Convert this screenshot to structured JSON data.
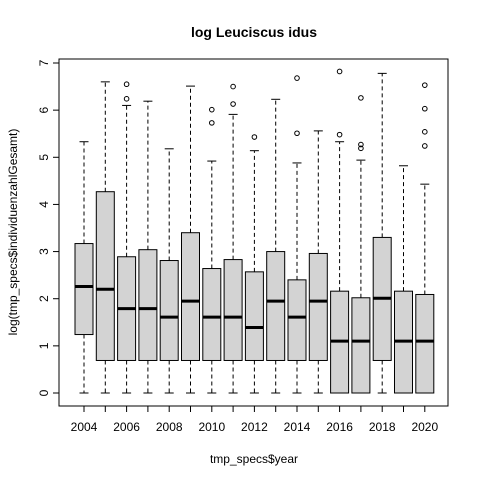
{
  "chart_data": {
    "type": "boxplot",
    "title": "log Leuciscus idus",
    "xlabel": "tmp_specs$year",
    "ylabel": "log(tmp_specs$individuenzahlGesamt)",
    "ylim": [
      0,
      7
    ],
    "yticks": [
      "0",
      "1",
      "2",
      "3",
      "4",
      "5",
      "6",
      "7"
    ],
    "xtick_labels": [
      "2004",
      "2006",
      "2008",
      "2010",
      "2012",
      "2014",
      "2016",
      "2018",
      "2020"
    ],
    "categories": [
      "2004",
      "2005",
      "2006",
      "2007",
      "2008",
      "2009",
      "2010",
      "2011",
      "2012",
      "2013",
      "2014",
      "2015",
      "2016",
      "2017",
      "2018",
      "2019",
      "2020"
    ],
    "boxes": [
      {
        "year": "2004",
        "min": 0,
        "q1": 1.24,
        "median": 2.26,
        "q3": 3.17,
        "max": 5.33,
        "outliers": []
      },
      {
        "year": "2005",
        "min": 0,
        "q1": 0.69,
        "median": 2.2,
        "q3": 4.27,
        "max": 6.6,
        "outliers": []
      },
      {
        "year": "2006",
        "min": 0,
        "q1": 0.69,
        "median": 1.79,
        "q3": 2.89,
        "max": 6.1,
        "outliers": [
          6.55,
          6.24
        ]
      },
      {
        "year": "2007",
        "min": 0,
        "q1": 0.69,
        "median": 1.79,
        "q3": 3.04,
        "max": 6.19,
        "outliers": []
      },
      {
        "year": "2008",
        "min": 0,
        "q1": 0.69,
        "median": 1.61,
        "q3": 2.81,
        "max": 5.18,
        "outliers": []
      },
      {
        "year": "2009",
        "min": 0,
        "q1": 0.69,
        "median": 1.95,
        "q3": 3.4,
        "max": 6.51,
        "outliers": []
      },
      {
        "year": "2010",
        "min": 0,
        "q1": 0.69,
        "median": 1.61,
        "q3": 2.64,
        "max": 4.92,
        "outliers": [
          6.01,
          5.73
        ]
      },
      {
        "year": "2011",
        "min": 0,
        "q1": 0.69,
        "median": 1.61,
        "q3": 2.83,
        "max": 5.91,
        "outliers": [
          6.5,
          6.13
        ]
      },
      {
        "year": "2012",
        "min": 0,
        "q1": 0.69,
        "median": 1.39,
        "q3": 2.57,
        "max": 5.14,
        "outliers": [
          5.43
        ]
      },
      {
        "year": "2013",
        "min": 0,
        "q1": 0.69,
        "median": 1.95,
        "q3": 3.0,
        "max": 6.23,
        "outliers": []
      },
      {
        "year": "2014",
        "min": 0,
        "q1": 0.69,
        "median": 1.61,
        "q3": 2.4,
        "max": 4.88,
        "outliers": [
          6.68,
          5.51
        ]
      },
      {
        "year": "2015",
        "min": 0,
        "q1": 0.69,
        "median": 1.95,
        "q3": 2.96,
        "max": 5.56,
        "outliers": []
      },
      {
        "year": "2016",
        "min": 0,
        "q1": 0,
        "median": 1.1,
        "q3": 2.16,
        "max": 5.33,
        "outliers": [
          6.82,
          5.48
        ]
      },
      {
        "year": "2017",
        "min": 0,
        "q1": 0,
        "median": 1.1,
        "q3": 2.02,
        "max": 4.94,
        "outliers": [
          6.26,
          5.27,
          5.19
        ]
      },
      {
        "year": "2018",
        "min": 0,
        "q1": 0.69,
        "median": 2.01,
        "q3": 3.3,
        "max": 6.78,
        "outliers": []
      },
      {
        "year": "2019",
        "min": 0,
        "q1": 0,
        "median": 1.1,
        "q3": 2.16,
        "max": 4.82,
        "outliers": []
      },
      {
        "year": "2020",
        "min": 0,
        "q1": 0,
        "median": 1.1,
        "q3": 2.09,
        "max": 4.43,
        "outliers": [
          6.53,
          6.03,
          5.54,
          5.24
        ]
      }
    ],
    "box_fill": "#d3d3d3",
    "grid": false,
    "legend": "none"
  }
}
